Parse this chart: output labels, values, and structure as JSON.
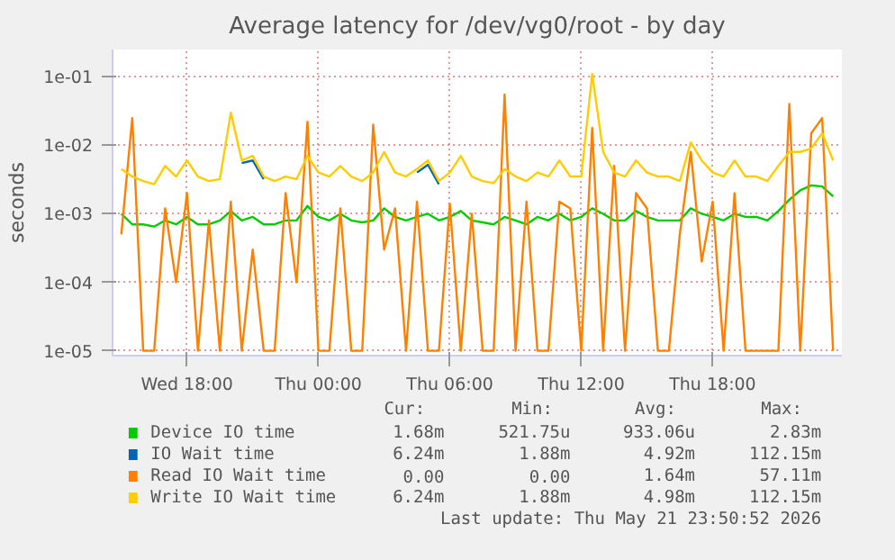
{
  "chart_data": {
    "type": "line",
    "title": "Average latency for /dev/vg0/root - by day",
    "ylabel": "seconds",
    "x": [
      "2026-05-20T15:00",
      "2026-05-20T15:30",
      "2026-05-20T16:00",
      "2026-05-20T16:30",
      "2026-05-20T17:00",
      "2026-05-20T17:30",
      "2026-05-20T18:00",
      "2026-05-20T18:30",
      "2026-05-20T19:00",
      "2026-05-20T19:30",
      "2026-05-20T20:00",
      "2026-05-20T20:30",
      "2026-05-20T21:00",
      "2026-05-20T21:30",
      "2026-05-20T22:00",
      "2026-05-20T22:30",
      "2026-05-20T23:00",
      "2026-05-20T23:30",
      "2026-05-21T00:00",
      "2026-05-21T00:30",
      "2026-05-21T01:00",
      "2026-05-21T01:30",
      "2026-05-21T02:00",
      "2026-05-21T02:30",
      "2026-05-21T03:00",
      "2026-05-21T03:30",
      "2026-05-21T04:00",
      "2026-05-21T04:30",
      "2026-05-21T05:00",
      "2026-05-21T05:30",
      "2026-05-21T06:00",
      "2026-05-21T06:30",
      "2026-05-21T07:00",
      "2026-05-21T07:30",
      "2026-05-21T08:00",
      "2026-05-21T08:30",
      "2026-05-21T09:00",
      "2026-05-21T09:30",
      "2026-05-21T10:00",
      "2026-05-21T10:30",
      "2026-05-21T11:00",
      "2026-05-21T11:30",
      "2026-05-21T12:00",
      "2026-05-21T12:30",
      "2026-05-21T13:00",
      "2026-05-21T13:30",
      "2026-05-21T14:00",
      "2026-05-21T14:30",
      "2026-05-21T15:00",
      "2026-05-21T15:30",
      "2026-05-21T16:00",
      "2026-05-21T16:30",
      "2026-05-21T17:00",
      "2026-05-21T17:30",
      "2026-05-21T18:00",
      "2026-05-21T18:30",
      "2026-05-21T19:00",
      "2026-05-21T19:30",
      "2026-05-21T20:00",
      "2026-05-21T20:30",
      "2026-05-21T21:00",
      "2026-05-21T21:30",
      "2026-05-21T22:00",
      "2026-05-21T22:30",
      "2026-05-21T23:00",
      "2026-05-21T23:30"
    ],
    "xlim": [
      "2026-05-20T14:36",
      "2026-05-21T23:54"
    ],
    "xticks": [
      {
        "value": "2026-05-20T18:00",
        "label": "Wed 18:00"
      },
      {
        "value": "2026-05-21T00:00",
        "label": "Thu 00:00"
      },
      {
        "value": "2026-05-21T06:00",
        "label": "Thu 06:00"
      },
      {
        "value": "2026-05-21T12:00",
        "label": "Thu 12:00"
      },
      {
        "value": "2026-05-21T18:00",
        "label": "Thu 18:00"
      }
    ],
    "log": "y",
    "ylim": [
      8.5e-06,
      0.25
    ],
    "yticks": [
      {
        "value": 1e-05,
        "label": "1e-05"
      },
      {
        "value": 0.0001,
        "label": "1e-04"
      },
      {
        "value": 0.001,
        "label": "1e-03"
      },
      {
        "value": 0.01,
        "label": "1e-02"
      },
      {
        "value": 0.1,
        "label": "1e-01"
      }
    ],
    "grid": true,
    "legend": "bottom",
    "marker": "none",
    "line_style": "solid",
    "series": [
      {
        "name": "Device IO time",
        "color": "#00cc00",
        "values": [
          0.001,
          0.0007,
          0.0007,
          0.00065,
          0.0008,
          0.0007,
          0.0009,
          0.0007,
          0.0007,
          0.0008,
          0.0011,
          0.0008,
          0.0009,
          0.0007,
          0.0007,
          0.0008,
          0.0008,
          0.0013,
          0.0009,
          0.0008,
          0.001,
          0.0008,
          0.00075,
          0.0008,
          0.0012,
          0.0009,
          0.0008,
          0.0009,
          0.001,
          0.0008,
          0.0009,
          0.0011,
          0.0008,
          0.00075,
          0.0007,
          0.0009,
          0.0008,
          0.0007,
          0.0009,
          0.0008,
          0.001,
          0.0008,
          0.0009,
          0.0012,
          0.001,
          0.0008,
          0.0008,
          0.0011,
          0.0009,
          0.0008,
          0.0008,
          0.0008,
          0.0012,
          0.001,
          0.0009,
          0.0008,
          0.001,
          0.0009,
          0.0009,
          0.0008,
          0.0011,
          0.0016,
          0.0022,
          0.0026,
          0.0025,
          0.0018
        ]
      },
      {
        "name": "IO Wait time",
        "color": "#0066b3",
        "values": [
          null,
          null,
          null,
          null,
          null,
          null,
          null,
          null,
          null,
          null,
          null,
          0.0055,
          0.006,
          0.0032,
          null,
          null,
          null,
          null,
          null,
          null,
          null,
          null,
          null,
          null,
          null,
          null,
          null,
          0.004,
          0.0052,
          0.0027,
          null,
          null,
          null,
          null,
          null,
          null,
          null,
          null,
          null,
          null,
          null,
          null,
          null,
          null,
          null,
          null,
          null,
          null,
          null,
          null,
          null,
          null,
          null,
          null,
          null,
          null,
          null,
          null,
          null,
          null,
          null,
          null,
          null,
          null,
          null,
          null
        ]
      },
      {
        "name": "Read IO Wait time",
        "color": "#ff8000",
        "values": [
          0.0005,
          0.025,
          1e-05,
          1e-05,
          0.0012,
          0.0001,
          0.002,
          1e-05,
          0.0008,
          1e-05,
          0.0015,
          1e-05,
          0.0003,
          1e-05,
          1e-05,
          0.002,
          0.0001,
          0.022,
          1e-05,
          1e-05,
          0.0012,
          1e-05,
          1e-05,
          0.02,
          0.0003,
          0.0012,
          1e-05,
          0.0015,
          1e-05,
          1e-05,
          0.0014,
          1e-05,
          0.001,
          1e-05,
          1e-05,
          0.055,
          1e-05,
          0.0015,
          1e-05,
          1e-05,
          0.0015,
          0.0012,
          1e-05,
          0.018,
          1e-05,
          0.005,
          1e-05,
          0.002,
          0.0012,
          1e-05,
          1e-05,
          0.0005,
          0.008,
          0.0002,
          0.0015,
          1e-05,
          0.002,
          1e-05,
          1e-05,
          1e-05,
          1e-05,
          0.04,
          1e-05,
          0.015,
          0.025,
          1e-05
        ]
      },
      {
        "name": "Write IO Wait time",
        "color": "#ffcc00",
        "values": [
          0.0045,
          0.0035,
          0.003,
          0.0027,
          0.005,
          0.0035,
          0.006,
          0.0035,
          0.003,
          0.0032,
          0.03,
          0.006,
          0.007,
          0.0035,
          0.003,
          0.0035,
          0.0032,
          0.007,
          0.004,
          0.0035,
          0.005,
          0.0035,
          0.003,
          0.004,
          0.008,
          0.004,
          0.0035,
          0.0045,
          0.006,
          0.003,
          0.004,
          0.007,
          0.0035,
          0.003,
          0.0028,
          0.0045,
          0.0035,
          0.003,
          0.004,
          0.0035,
          0.006,
          0.0035,
          0.0035,
          0.11,
          0.008,
          0.004,
          0.0035,
          0.006,
          0.004,
          0.0035,
          0.0035,
          0.003,
          0.011,
          0.006,
          0.004,
          0.0035,
          0.006,
          0.0035,
          0.0035,
          0.003,
          0.005,
          0.008,
          0.008,
          0.009,
          0.015,
          0.006
        ]
      }
    ],
    "annotations": [
      "Cur:",
      "Min:",
      "Avg:",
      "Max:",
      "1.68m",
      "521.75u",
      "933.06u",
      "2.83m",
      "6.24m",
      "1.88m",
      "4.92m",
      "112.15m",
      "0.00",
      "0.00",
      "1.64m",
      "57.11m",
      "6.24m",
      "1.88m",
      "4.98m",
      "112.15m",
      "Last update: Thu May 21 23:50:52 2026"
    ]
  }
}
